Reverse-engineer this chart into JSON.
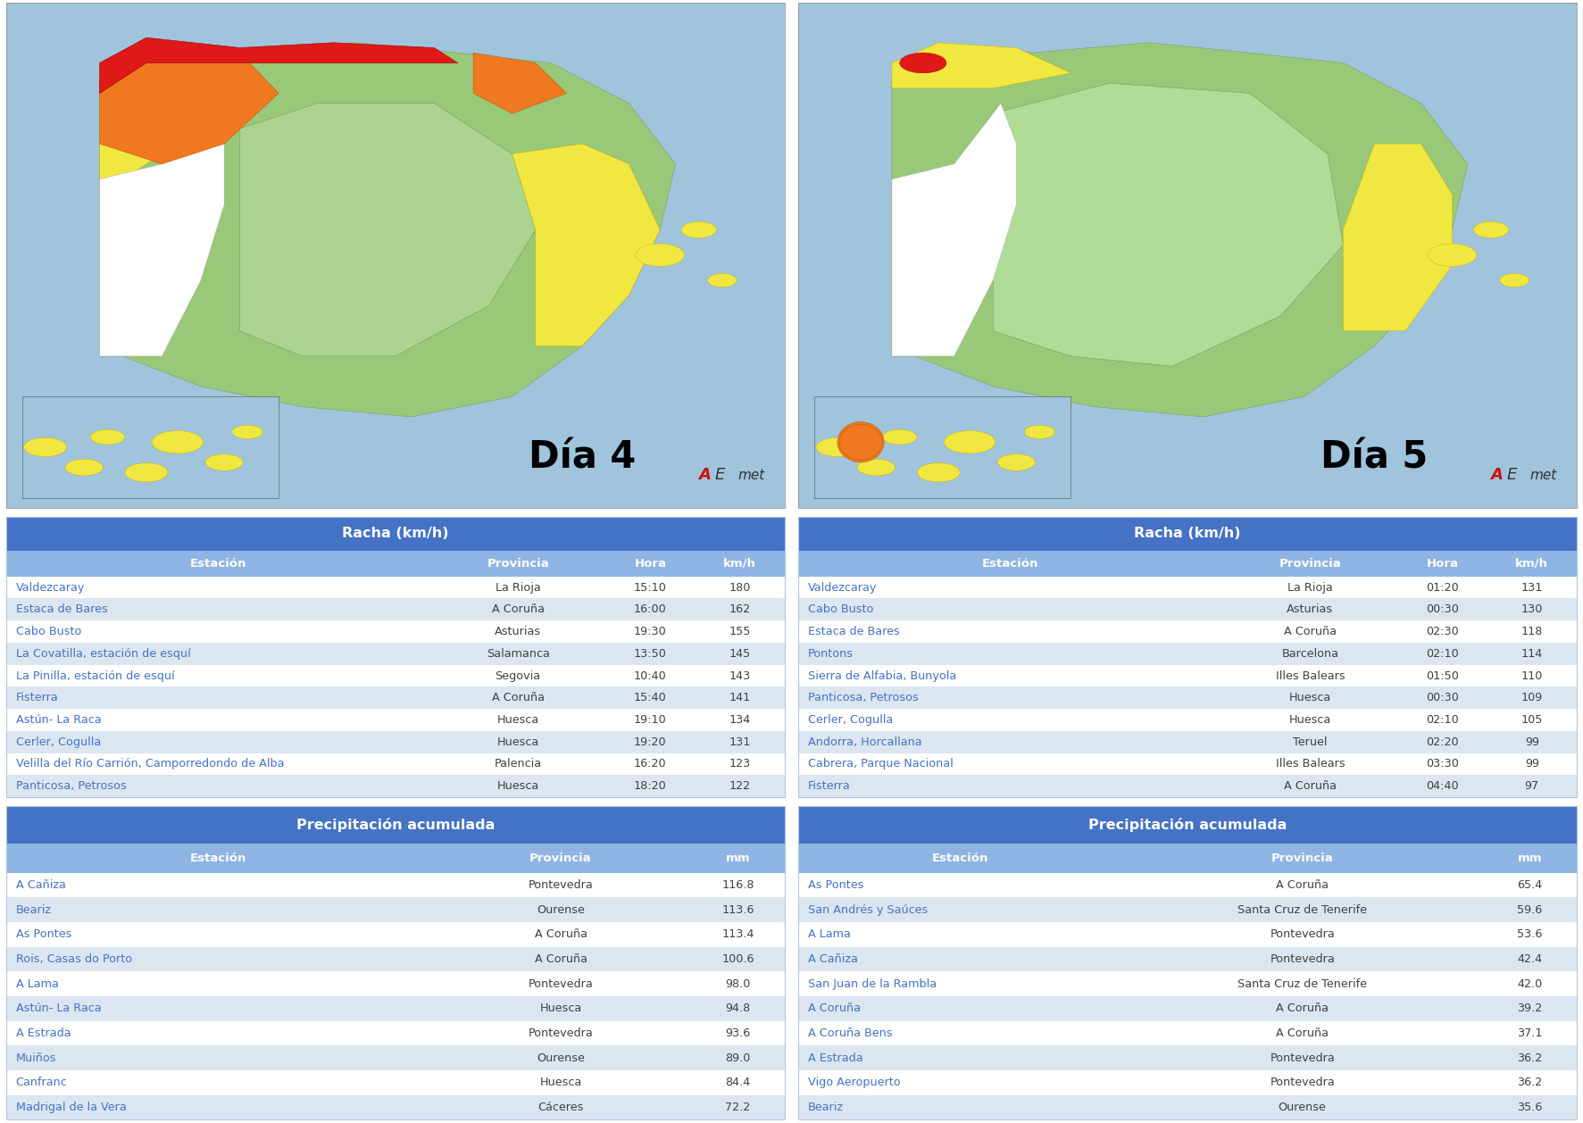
{
  "bg_color": "#ffffff",
  "header_blue": "#4472c4",
  "subheader_blue": "#8eb4e3",
  "row_odd": "#dce6f1",
  "row_even": "#ffffff",
  "row_odd2": "#dce6f1",
  "text_station": "#4472c4",
  "text_data": "#404040",
  "map_bg": "#a0c4dc",
  "table_gap_color": "#ffffff",
  "day4_label": "Día 4",
  "day5_label": "Día 5",
  "wind_title": "Racha (km/h)",
  "precip_title": "Precipitación acumulada",
  "col_estacion": "Estación",
  "col_provincia": "Provincia",
  "col_hora": "Hora",
  "col_kmh": "km/h",
  "col_mm": "mm",
  "wind_day4": [
    [
      "Valdezcaray",
      "La Rioja",
      "15:10",
      "180"
    ],
    [
      "Estaca de Bares",
      "A Coruña",
      "16:00",
      "162"
    ],
    [
      "Cabo Busto",
      "Asturias",
      "19:30",
      "155"
    ],
    [
      "La Covatilla, estación de esquí",
      "Salamanca",
      "13:50",
      "145"
    ],
    [
      "La Pinilla, estación de esquí",
      "Segovia",
      "10:40",
      "143"
    ],
    [
      "Fisterra",
      "A Coruña",
      "15:40",
      "141"
    ],
    [
      "Astún- La Raca",
      "Huesca",
      "19:10",
      "134"
    ],
    [
      "Cerler, Cogulla",
      "Huesca",
      "19:20",
      "131"
    ],
    [
      "Velilla del Río Carrión, Camporredondo de Alba",
      "Palencia",
      "16:20",
      "123"
    ],
    [
      "Panticosa, Petrosos",
      "Huesca",
      "18:20",
      "122"
    ]
  ],
  "wind_day5": [
    [
      "Valdezcaray",
      "La Rioja",
      "01:20",
      "131"
    ],
    [
      "Cabo Busto",
      "Asturias",
      "00:30",
      "130"
    ],
    [
      "Estaca de Bares",
      "A Coruña",
      "02:30",
      "118"
    ],
    [
      "Pontons",
      "Barcelona",
      "02:10",
      "114"
    ],
    [
      "Sierra de Alfabia, Bunyola",
      "Illes Balears",
      "01:50",
      "110"
    ],
    [
      "Panticosa, Petrosos",
      "Huesca",
      "00:30",
      "109"
    ],
    [
      "Cerler, Cogulla",
      "Huesca",
      "02:10",
      "105"
    ],
    [
      "Andorra, Horcallana",
      "Teruel",
      "02:20",
      "99"
    ],
    [
      "Cabrera, Parque Nacional",
      "Illes Balears",
      "03:30",
      "99"
    ],
    [
      "Fisterra",
      "A Coruña",
      "04:40",
      "97"
    ]
  ],
  "precip_day4": [
    [
      "A Cañiza",
      "Pontevedra",
      "116.8"
    ],
    [
      "Beariz",
      "Ourense",
      "113.6"
    ],
    [
      "As Pontes",
      "A Coruña",
      "113.4"
    ],
    [
      "Rois, Casas do Porto",
      "A Coruña",
      "100.6"
    ],
    [
      "A Lama",
      "Pontevedra",
      "98.0"
    ],
    [
      "Astún- La Raca",
      "Huesca",
      "94.8"
    ],
    [
      "A Estrada",
      "Pontevedra",
      "93.6"
    ],
    [
      "Muiños",
      "Ourense",
      "89.0"
    ],
    [
      "Canfranc",
      "Huesca",
      "84.4"
    ],
    [
      "Madrigal de la Vera",
      "Cáceres",
      "72.2"
    ]
  ],
  "precip_day5": [
    [
      "As Pontes",
      "A Coruña",
      "65.4"
    ],
    [
      "San Andrés y Saúces",
      "Santa Cruz de Tenerife",
      "59.6"
    ],
    [
      "A Lama",
      "Pontevedra",
      "53.6"
    ],
    [
      "A Cañiza",
      "Pontevedra",
      "42.4"
    ],
    [
      "San Juan de la Rambla",
      "Santa Cruz de Tenerife",
      "42.0"
    ],
    [
      "A Coruña",
      "A Coruña",
      "39.2"
    ],
    [
      "A Coruña Bens",
      "A Coruña",
      "37.1"
    ],
    [
      "A Estrada",
      "Pontevedra",
      "36.2"
    ],
    [
      "Vigo Aeropuerto",
      "Pontevedra",
      "36.2"
    ],
    [
      "Beariz",
      "Ourense",
      "35.6"
    ]
  ],
  "map1_colors": {
    "sea": "#a0c4dc",
    "land_green": "#90c878",
    "land_light_green": "#b8dca0",
    "yellow": "#f0e040",
    "orange": "#f08020",
    "red": "#e02020",
    "canary_yellow": "#f0e040"
  }
}
